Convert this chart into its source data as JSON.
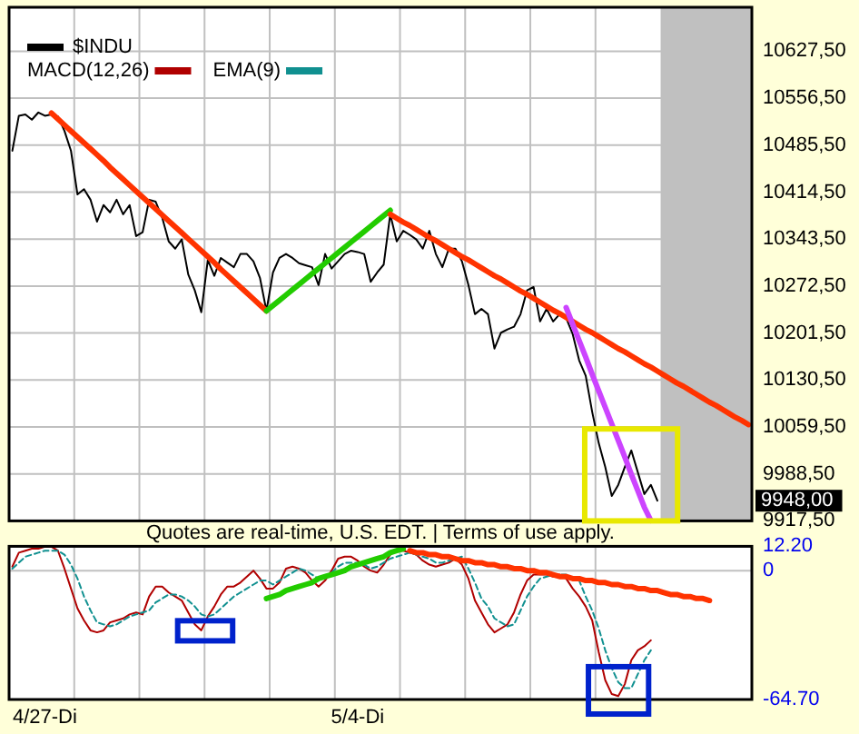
{
  "chart_data": [
    {
      "type": "line",
      "categories": [
        null,
        null,
        null,
        null,
        null,
        null,
        null,
        null,
        null,
        null,
        null,
        null,
        null,
        null,
        null,
        null,
        null,
        null,
        null,
        null,
        null,
        null,
        null,
        null,
        null,
        null,
        null,
        null,
        null,
        null,
        null,
        null,
        null,
        null,
        null,
        null,
        null,
        null,
        null,
        null,
        null,
        null,
        null,
        null,
        null,
        null,
        null,
        null,
        null,
        null,
        null,
        null,
        null,
        null,
        null,
        null,
        null,
        null,
        null,
        null,
        null,
        null,
        null,
        null,
        null,
        null,
        null,
        null,
        null,
        null,
        null,
        null,
        null,
        null,
        null,
        null,
        null,
        null,
        null,
        null,
        null,
        null,
        null,
        null,
        null,
        null,
        null,
        null,
        null,
        null,
        null,
        null,
        null,
        null,
        null,
        null,
        null,
        null,
        null,
        null,
        null,
        null,
        null,
        null,
        null,
        null,
        null,
        null,
        null,
        null,
        null,
        null,
        null,
        null
      ],
      "series": [
        {
          "name": "$INDU",
          "color": "#000000",
          "values": [
            10477,
            10530,
            10532,
            10524,
            10535,
            10530,
            10532,
            10529,
            10507,
            10477,
            10411,
            10419,
            10403,
            10370,
            10395,
            10384,
            10403,
            10381,
            10395,
            10348,
            10354,
            10403,
            10400,
            10376,
            10340,
            10329,
            10343,
            10290,
            10266,
            10233,
            10312,
            10288,
            10315,
            10308,
            10301,
            10321,
            10321,
            10310,
            10285,
            10235,
            10293,
            10315,
            10321,
            10315,
            10307,
            10304,
            10301,
            10274,
            10321,
            10299,
            10310,
            10321,
            10326,
            10324,
            10321,
            10279,
            10293,
            10305,
            10381,
            10340,
            10356,
            10350,
            10343,
            10329,
            10356,
            10321,
            10301,
            10329,
            10329,
            10310,
            10274,
            10230,
            10238,
            10230,
            10178,
            10202,
            10207,
            10211,
            10230,
            10266,
            10271,
            10219,
            10238,
            10219,
            10230,
            10224,
            10200,
            10160,
            10137,
            10082,
            10035,
            9999,
            9955,
            9972,
            9999,
            10024,
            9991,
            9958,
            9972,
            9948,
            null,
            null,
            null,
            null,
            null,
            null,
            null,
            null,
            null,
            null,
            null,
            null,
            null,
            null
          ]
        },
        {
          "color": "#ff3300",
          "values": [
            null,
            null,
            null,
            null,
            null,
            null,
            10534,
            10525,
            10516,
            10507,
            10498,
            10489,
            10480,
            10471,
            10462,
            10452,
            10443,
            10434,
            10425,
            10416,
            10407,
            10398,
            10389,
            10380,
            10371,
            10362,
            10353,
            10344,
            10335,
            10326,
            10317,
            10308,
            10298,
            10289,
            10280,
            10271,
            10262,
            10253,
            10244,
            10235,
            null,
            null,
            null,
            null,
            null,
            null,
            null,
            null,
            null,
            null,
            null,
            null,
            null,
            null,
            null,
            null,
            null,
            null,
            null,
            null,
            null,
            null,
            null,
            null,
            null,
            null,
            null,
            null,
            null,
            null,
            null,
            null,
            null,
            null,
            null,
            null,
            null,
            null,
            null,
            null,
            null,
            null,
            null,
            null,
            null,
            null,
            null,
            null,
            null,
            null,
            null,
            null,
            null,
            null,
            null,
            null,
            null,
            null,
            null,
            null,
            null,
            null,
            null,
            null,
            null,
            null,
            null,
            null,
            null,
            null,
            null,
            null,
            null,
            null
          ]
        },
        {
          "color": "#22cc00",
          "values": [
            null,
            null,
            null,
            null,
            null,
            null,
            null,
            null,
            null,
            null,
            null,
            null,
            null,
            null,
            null,
            null,
            null,
            null,
            null,
            null,
            null,
            null,
            null,
            null,
            null,
            null,
            null,
            null,
            null,
            null,
            null,
            null,
            null,
            null,
            null,
            null,
            null,
            null,
            null,
            10235,
            10243,
            10251,
            10259,
            10267,
            10275,
            10283,
            10291,
            10299,
            10307,
            10315,
            10323,
            10331,
            10339,
            10347,
            10355,
            10363,
            10371,
            10379,
            10387,
            null,
            null,
            null,
            null,
            null,
            null,
            null,
            null,
            null,
            null,
            null,
            null,
            null,
            null,
            null,
            null,
            null,
            null,
            null,
            null,
            null,
            null,
            null,
            null,
            null,
            null,
            null,
            null,
            null,
            null,
            null,
            null,
            null,
            null,
            null,
            null,
            null,
            null,
            null,
            null,
            null,
            null,
            null,
            null,
            null,
            null,
            null,
            null,
            null,
            null,
            null,
            null,
            null,
            null,
            null
          ]
        },
        {
          "color": "#ff3300",
          "values": [
            null,
            null,
            null,
            null,
            null,
            null,
            null,
            null,
            null,
            null,
            null,
            null,
            null,
            null,
            null,
            null,
            null,
            null,
            null,
            null,
            null,
            null,
            null,
            null,
            null,
            null,
            null,
            null,
            null,
            null,
            null,
            null,
            null,
            null,
            null,
            null,
            null,
            null,
            null,
            null,
            null,
            null,
            null,
            null,
            null,
            null,
            null,
            null,
            null,
            null,
            null,
            null,
            null,
            null,
            null,
            null,
            null,
            null,
            10381,
            10375,
            10369,
            10364,
            10358,
            10352,
            10346,
            10341,
            10335,
            10329,
            10323,
            10317,
            10312,
            10306,
            10300,
            10294,
            10288,
            10283,
            10277,
            10271,
            10265,
            10260,
            10254,
            10248,
            10242,
            10236,
            10231,
            10225,
            10219,
            10213,
            10207,
            10202,
            10196,
            10190,
            10184,
            10178,
            10173,
            10167,
            10161,
            10155,
            10150,
            10144,
            10138,
            10132,
            10126,
            10121,
            10115,
            10109,
            10103,
            10097,
            10092,
            10086,
            10080,
            10074,
            10069,
            10063
          ]
        },
        {
          "color": "#cc44ff",
          "values": [
            null,
            null,
            null,
            null,
            null,
            null,
            null,
            null,
            null,
            null,
            null,
            null,
            null,
            null,
            null,
            null,
            null,
            null,
            null,
            null,
            null,
            null,
            null,
            null,
            null,
            null,
            null,
            null,
            null,
            null,
            null,
            null,
            null,
            null,
            null,
            null,
            null,
            null,
            null,
            null,
            null,
            null,
            null,
            null,
            null,
            null,
            null,
            null,
            null,
            null,
            null,
            null,
            null,
            null,
            null,
            null,
            null,
            null,
            null,
            null,
            null,
            null,
            null,
            null,
            null,
            null,
            null,
            null,
            null,
            null,
            null,
            null,
            null,
            null,
            null,
            null,
            null,
            null,
            null,
            null,
            null,
            null,
            null,
            null,
            null,
            10240,
            10215,
            10190,
            10165,
            10139,
            10114,
            10089,
            10064,
            10039,
            10014,
            9988,
            9963,
            9938,
            9918,
            null,
            null,
            null,
            null,
            null,
            null,
            null,
            null,
            null,
            null,
            null,
            null,
            null,
            null,
            null
          ]
        }
      ],
      "ylim": [
        9917.5,
        10694
      ],
      "yticks": [
        {
          "value": 9917.5,
          "label": "9917,50"
        },
        {
          "value": 9988.5,
          "label": "9988,50"
        },
        {
          "value": 10059.5,
          "label": "10059,50"
        },
        {
          "value": 10130.5,
          "label": "10130,50"
        },
        {
          "value": 10201.5,
          "label": "10201,50"
        },
        {
          "value": 10272.5,
          "label": "10272,50"
        },
        {
          "value": 10343.5,
          "label": "10343,50"
        },
        {
          "value": 10414.5,
          "label": "10414,50"
        },
        {
          "value": 10485.5,
          "label": "10485,50"
        },
        {
          "value": 10556.5,
          "label": "10556,50"
        },
        {
          "value": 10627.5,
          "label": "10627,50"
        }
      ],
      "tick_labels": "y",
      "grid": true,
      "legend": "top left",
      "annotations": [
        "9948,00"
      ]
    },
    {
      "type": "line",
      "categories": [
        null,
        null,
        null,
        null,
        null,
        "4/27-Di",
        null,
        null,
        null,
        null,
        null,
        null,
        null,
        null,
        null,
        null,
        null,
        null,
        null,
        null,
        null,
        null,
        null,
        null,
        null,
        null,
        null,
        null,
        null,
        null,
        null,
        null,
        null,
        null,
        null,
        null,
        null,
        null,
        null,
        null,
        null,
        null,
        null,
        null,
        null,
        null,
        null,
        null,
        null,
        null,
        null,
        null,
        null,
        "5/4-Di",
        null,
        null,
        null,
        null,
        null,
        null,
        null,
        null,
        null,
        null,
        null,
        null,
        null,
        null,
        null,
        null,
        null,
        null,
        null,
        null,
        null,
        null,
        null,
        null,
        null,
        null,
        null,
        null,
        null,
        null,
        null,
        null,
        null,
        null,
        null,
        null,
        null,
        null,
        null,
        null,
        null,
        null,
        null,
        null,
        null,
        null,
        null,
        null,
        null,
        null,
        null,
        null,
        null,
        null,
        null,
        null,
        null,
        null,
        null,
        null
      ],
      "series": [
        {
          "name": "MACD(12,26)",
          "color": "#b00000",
          "values": [
            2,
            9,
            10,
            11,
            11,
            12,
            12,
            10,
            1,
            -9,
            -19,
            -25,
            -30,
            -31,
            -30,
            -26,
            -25,
            -24,
            -22,
            -21,
            -22,
            -13,
            -8,
            -8,
            -11,
            -13,
            -15,
            -21,
            -27,
            -30,
            -23,
            -18,
            -12,
            -8,
            -8,
            -6,
            -3,
            0,
            -4,
            -9,
            -9,
            -6,
            1,
            2,
            1,
            -1,
            -5,
            -8,
            -5,
            0,
            6,
            7,
            7,
            5,
            2,
            0,
            -1,
            3,
            8,
            10,
            10,
            9,
            8,
            5,
            3,
            2,
            3,
            4,
            6,
            3,
            -4,
            -15,
            -21,
            -27,
            -31,
            -29,
            -27,
            -21,
            -12,
            -5,
            -2,
            -2,
            -2,
            -3,
            -2,
            -4,
            -9,
            -13,
            -18,
            -25,
            -41,
            -55,
            -62,
            -63,
            -57,
            -45,
            -40,
            -38,
            -35,
            null,
            null,
            null,
            null,
            null,
            null,
            null,
            null,
            null,
            null,
            null,
            null,
            null,
            null,
            null
          ]
        },
        {
          "name": "EMA(9)",
          "color": "#109090",
          "line_style": "dashed",
          "values": [
            1,
            4,
            7,
            8,
            9,
            10,
            10,
            10,
            8,
            3,
            -4,
            -13,
            -20,
            -26,
            -27,
            -28,
            -27,
            -25,
            -23,
            -22,
            -21,
            -20,
            -16,
            -14,
            -12,
            -12,
            -13,
            -15,
            -18,
            -22,
            -23,
            -22,
            -19,
            -16,
            -13,
            -11,
            -9,
            -7,
            -5,
            -5,
            -7,
            -5,
            -3,
            -1,
            1,
            0,
            -2,
            -4,
            -4,
            -1,
            2,
            4,
            4,
            4,
            3,
            1,
            2,
            4,
            6,
            7,
            8,
            9,
            8,
            7,
            6,
            4,
            4,
            5,
            6,
            7,
            1,
            -6,
            -14,
            -18,
            -24,
            -26,
            -28,
            -27,
            -20,
            -13,
            -8,
            -4,
            -3,
            -2,
            -2,
            -2,
            -4,
            -5,
            -13,
            -20,
            -29,
            -40,
            -49,
            -56,
            -59,
            -59,
            -52,
            -45,
            -40,
            null,
            null,
            null,
            null,
            null,
            null,
            null,
            null,
            null,
            null,
            null,
            null,
            null,
            null,
            null
          ]
        },
        {
          "color": "#22cc00",
          "values": [
            null,
            null,
            null,
            null,
            null,
            null,
            null,
            null,
            null,
            null,
            null,
            null,
            null,
            null,
            null,
            null,
            null,
            null,
            null,
            null,
            null,
            null,
            null,
            null,
            null,
            null,
            null,
            null,
            null,
            null,
            null,
            null,
            null,
            null,
            null,
            null,
            null,
            null,
            null,
            -14,
            -13,
            -12,
            -10,
            -9,
            -8,
            -7,
            -6,
            -4,
            -3,
            -2,
            -1,
            0,
            2,
            3,
            4,
            5,
            6,
            7,
            9,
            10,
            11,
            null,
            null,
            null,
            null,
            null,
            null,
            null,
            null,
            null,
            null,
            null,
            null,
            null,
            null,
            null,
            null,
            null,
            null,
            null,
            null,
            null,
            null,
            null,
            null,
            null,
            null,
            null,
            null,
            null,
            null,
            null,
            null,
            null,
            null,
            null,
            null,
            null,
            null,
            null,
            null,
            null,
            null,
            null,
            null,
            null,
            null,
            null,
            null,
            null,
            null,
            null,
            null,
            null
          ]
        },
        {
          "color": "#ff3300",
          "values": [
            null,
            null,
            null,
            null,
            null,
            null,
            null,
            null,
            null,
            null,
            null,
            null,
            null,
            null,
            null,
            null,
            null,
            null,
            null,
            null,
            null,
            null,
            null,
            null,
            null,
            null,
            null,
            null,
            null,
            null,
            null,
            null,
            null,
            null,
            null,
            null,
            null,
            null,
            null,
            null,
            null,
            null,
            null,
            null,
            null,
            null,
            null,
            null,
            null,
            null,
            null,
            null,
            null,
            null,
            null,
            null,
            null,
            null,
            null,
            null,
            null,
            10,
            9,
            9,
            8,
            8,
            7,
            7,
            6,
            5,
            5,
            4,
            4,
            3,
            3,
            2,
            2,
            1,
            1,
            0,
            0,
            -1,
            -1,
            -2,
            -3,
            -3,
            -4,
            -4,
            -5,
            -5,
            -6,
            -6,
            -7,
            -7,
            -8,
            -8,
            -9,
            -9,
            -10,
            -10,
            -11,
            -12,
            -12,
            -13,
            -13,
            -14,
            -14,
            -15,
            null,
            null,
            null,
            null,
            null,
            null
          ]
        }
      ],
      "ylim": [
        -64.7,
        12.2
      ],
      "yticks": [
        {
          "value": -64.7,
          "label": "-64.70"
        },
        0,
        {
          "value": 12.2,
          "label": "12.20"
        }
      ],
      "grid": true,
      "legend": "top left",
      "annotations": [
        "Quotes are real-time, U.S. EDT. | Terms of use apply."
      ]
    }
  ]
}
